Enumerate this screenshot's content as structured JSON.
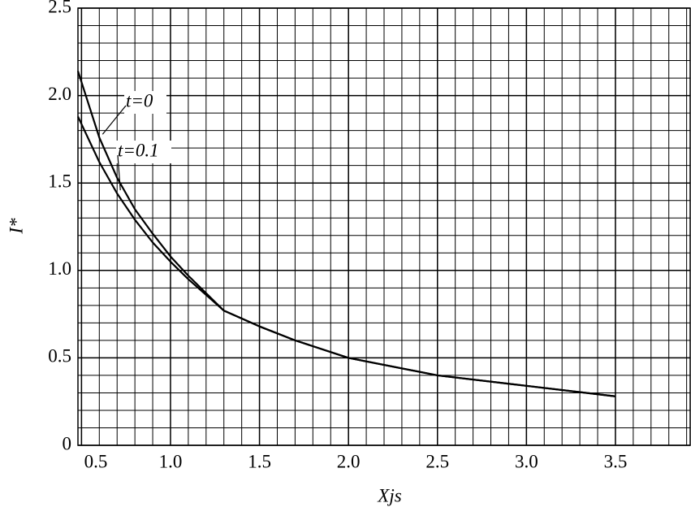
{
  "chart_data": {
    "type": "line",
    "x_label": "Xjs",
    "y_label": "I*",
    "x": [
      0.48,
      0.6,
      0.7,
      0.8,
      0.9,
      1.0,
      1.1,
      1.2,
      1.3,
      1.5,
      1.7,
      2.0,
      2.5,
      3.0,
      3.5
    ],
    "series": [
      {
        "name": "t=0",
        "color": "#000000",
        "values": [
          2.14,
          1.76,
          1.53,
          1.35,
          1.21,
          1.08,
          0.97,
          0.87,
          0.77,
          0.68,
          0.6,
          0.5,
          0.4,
          0.34,
          0.28
        ]
      },
      {
        "name": "t=0.1",
        "color": "#000000",
        "values": [
          1.88,
          1.62,
          1.44,
          1.29,
          1.16,
          1.05,
          0.95,
          0.86,
          0.77,
          0.68,
          0.6,
          0.5,
          0.4,
          0.34,
          0.28
        ]
      }
    ],
    "xlim": [
      0.48,
      3.92
    ],
    "ylim": [
      0,
      2.5
    ],
    "xticks": [
      0.5,
      {
        "value": 1,
        "label": "1.0"
      },
      1.5,
      {
        "value": 2,
        "label": "2.0"
      },
      2.5,
      {
        "value": 3,
        "label": "3.0"
      },
      3.5
    ],
    "yticks": [
      {
        "value": 0,
        "label": "0"
      },
      0.5,
      {
        "value": 1,
        "label": "1.0"
      },
      1.5,
      {
        "value": 2,
        "label": "2.0"
      },
      2.5
    ],
    "grid": true,
    "minor_grid": {
      "x": 0.1,
      "y": 0.1
    }
  }
}
